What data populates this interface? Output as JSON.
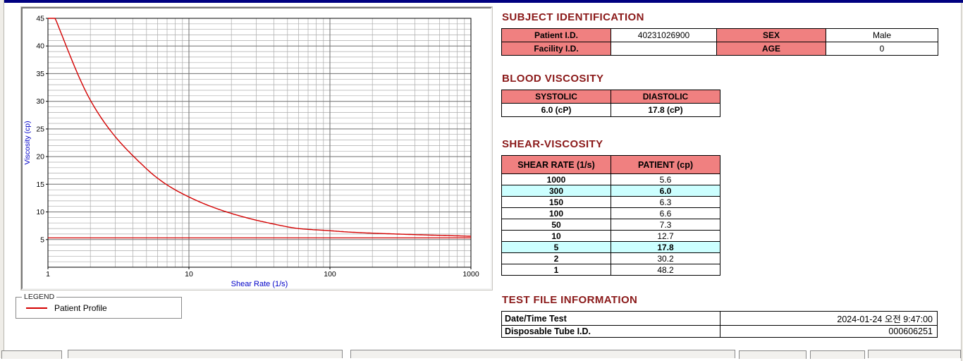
{
  "window": {
    "titlebar_color": "#000080"
  },
  "chart_data": {
    "type": "line",
    "title": "",
    "xlabel": "Shear Rate (1/s)",
    "ylabel": "Viscosity (cp)",
    "xscale": "log",
    "xlim": [
      1,
      1000
    ],
    "ylim": [
      0,
      45
    ],
    "xticks": [
      1,
      10,
      100,
      1000
    ],
    "yticks": [
      5,
      10,
      15,
      20,
      25,
      30,
      35,
      40,
      45
    ],
    "grid": true,
    "series": [
      {
        "name": "Patient Profile",
        "color": "#d40000",
        "x": [
          1,
          2,
          5,
          10,
          50,
          100,
          150,
          300,
          1000
        ],
        "y": [
          48.2,
          30.2,
          17.8,
          12.7,
          7.3,
          6.6,
          6.3,
          6.0,
          5.6
        ]
      }
    ],
    "reference_line": {
      "y": 5.3,
      "color": "#d40000"
    },
    "legend": {
      "title": "LEGEND",
      "entries": [
        "Patient Profile"
      ],
      "position": "below-left"
    }
  },
  "sections": {
    "subject": {
      "title": "SUBJECT IDENTIFICATION",
      "rows": [
        {
          "label": "Patient I.D.",
          "value": "40231026900",
          "label2": "SEX",
          "value2": "Male"
        },
        {
          "label": "Facility I.D.",
          "value": "",
          "label2": "AGE",
          "value2": "0"
        }
      ]
    },
    "blood_viscosity": {
      "title": "BLOOD VISCOSITY",
      "headers": [
        "SYSTOLIC",
        "DIASTOLIC"
      ],
      "values": [
        "6.0 (cP)",
        "17.8 (cP)"
      ]
    },
    "shear_viscosity": {
      "title": "SHEAR-VISCOSITY",
      "headers": [
        "SHEAR RATE (1/s)",
        "PATIENT (cp)"
      ],
      "rows": [
        {
          "rate": "1000",
          "value": "5.6",
          "highlight": false
        },
        {
          "rate": "300",
          "value": "6.0",
          "highlight": true
        },
        {
          "rate": "150",
          "value": "6.3",
          "highlight": false
        },
        {
          "rate": "100",
          "value": "6.6",
          "highlight": false
        },
        {
          "rate": "50",
          "value": "7.3",
          "highlight": false
        },
        {
          "rate": "10",
          "value": "12.7",
          "highlight": false
        },
        {
          "rate": "5",
          "value": "17.8",
          "highlight": true
        },
        {
          "rate": "2",
          "value": "30.2",
          "highlight": false
        },
        {
          "rate": "1",
          "value": "48.2",
          "highlight": false
        }
      ]
    },
    "test_file": {
      "title": "TEST FILE INFORMATION",
      "rows": [
        {
          "label": "Date/Time Test",
          "value": "2024-01-24   오전 9:47:00"
        },
        {
          "label": "Disposable Tube I.D.",
          "value": "000606251"
        }
      ]
    }
  },
  "colors": {
    "heading": "#8b1a1a",
    "table_header_bg": "#f08080",
    "highlight_bg": "#ccffff",
    "axis_label": "#0000c8",
    "grid_minor": "#ababab",
    "grid_major": "#6f6f6f",
    "series_red": "#d40000"
  }
}
